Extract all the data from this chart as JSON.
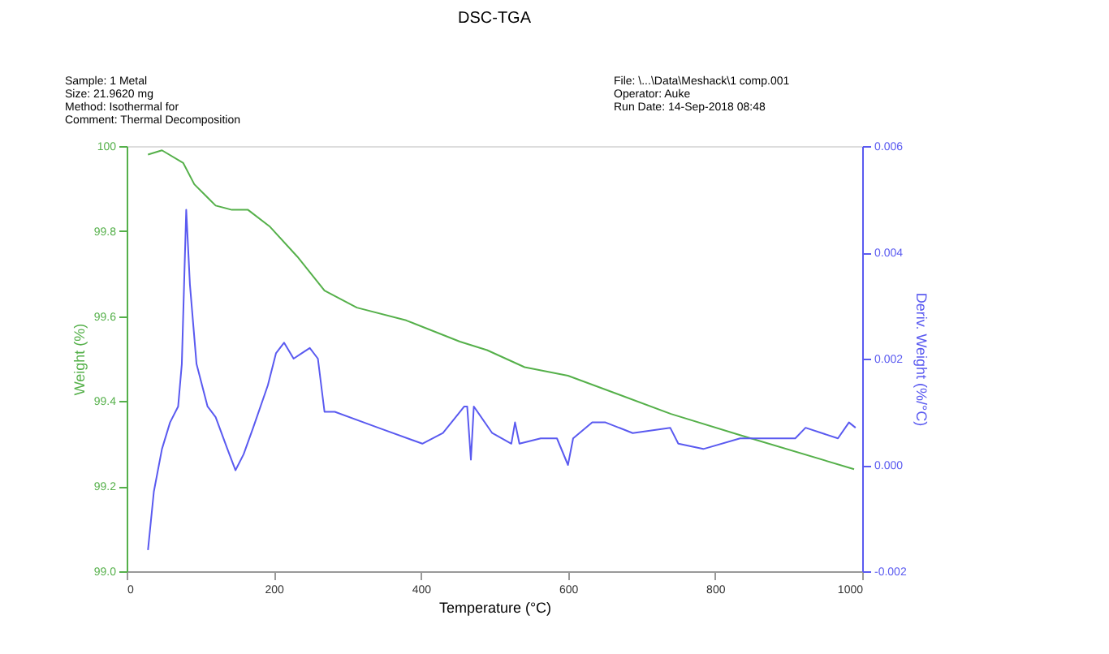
{
  "chart_data": {
    "type": "line",
    "title": "DSC-TGA",
    "xlabel": "Temperature (°C)",
    "ylabel": "Weight (%)",
    "y2label": "Deriv. Weight (%/°C)",
    "annotations": [
      "Sample: 1 Metal",
      "Size: 21.9620 mg",
      "Method: Isothermal for",
      "Comment: Thermal Decomposition",
      "File: \\...\\Data\\Meshack\\1 comp.001",
      "Operator: Auke",
      "Run Date: 14-Sep-2018 08:48"
    ],
    "xlim": [
      0,
      1000
    ],
    "xticks": [
      0,
      200,
      400,
      600,
      800,
      1000
    ],
    "ylim": [
      99.0,
      100
    ],
    "yticks": [
      {
        "value": 99.0,
        "label": "99.0"
      },
      {
        "value": 99.2,
        "label": "99.2"
      },
      {
        "value": 99.4,
        "label": "99.4"
      },
      {
        "value": 99.6,
        "label": "99.6"
      },
      {
        "value": 99.8,
        "label": "99.8"
      },
      {
        "value": 100,
        "label": "100"
      }
    ],
    "y2lim": [
      -0.002,
      0.006
    ],
    "y2ticks": [
      {
        "value": -0.002,
        "label": "-0.002"
      },
      {
        "value": 0,
        "label": "0.000"
      },
      {
        "value": 0.002,
        "label": "0.002"
      },
      {
        "value": 0.004,
        "label": "0.004"
      },
      {
        "value": 0.006,
        "label": "0.006"
      }
    ],
    "grid": false,
    "marker": "none",
    "line_style": "solid",
    "series": [
      {
        "color": "#55b04a",
        "x": [
          29,
          48,
          77,
          92,
          121,
          143,
          165,
          195,
          232,
          269,
          313,
          380,
          453,
          490,
          541,
          600,
          740,
          834,
          989
        ],
        "values": [
          99.98,
          99.99,
          99.96,
          99.91,
          99.86,
          99.85,
          99.85,
          99.81,
          99.74,
          99.66,
          99.62,
          99.59,
          99.54,
          99.52,
          99.48,
          99.46,
          99.37,
          99.32,
          99.24
        ]
      },
      {
        "color": "#5a5af0",
        "axis": "y2",
        "x": [
          29,
          37,
          48,
          59,
          70,
          75,
          81,
          86,
          95,
          110,
          121,
          137,
          148,
          159,
          172,
          192,
          203,
          214,
          227,
          238,
          249,
          260,
          269,
          283,
          342,
          402,
          430,
          459,
          463,
          468,
          472,
          497,
          523,
          528,
          534,
          563,
          585,
          600,
          607,
          633,
          651,
          688,
          739,
          750,
          784,
          834,
          872,
          909,
          923,
          967,
          982,
          991
        ],
        "values": [
          -0.0016,
          -0.0005,
          0.0003,
          0.0008,
          0.0011,
          0.0019,
          0.0048,
          0.0034,
          0.0019,
          0.0011,
          0.0009,
          0.0003,
          -0.0001,
          0.0002,
          0.0007,
          0.0015,
          0.0021,
          0.0023,
          0.002,
          0.0021,
          0.0022,
          0.002,
          0.001,
          0.001,
          0.0007,
          0.0004,
          0.0006,
          0.0011,
          0.0011,
          0.0001,
          0.0011,
          0.0006,
          0.0004,
          0.0008,
          0.0004,
          0.0005,
          0.0005,
          0.0,
          0.0005,
          0.0008,
          0.0008,
          0.0006,
          0.0007,
          0.0004,
          0.0003,
          0.0005,
          0.0005,
          0.0005,
          0.0007,
          0.0005,
          0.0008,
          0.0007
        ]
      }
    ]
  }
}
